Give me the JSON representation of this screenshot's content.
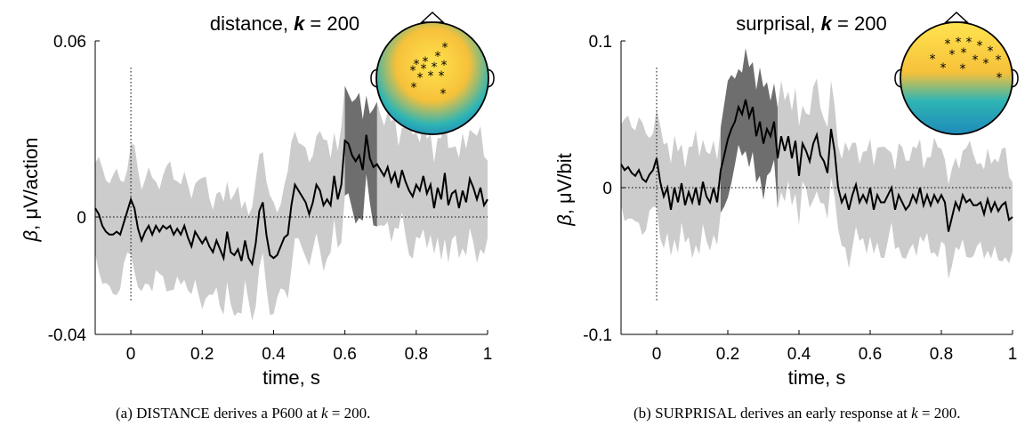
{
  "chart_data": [
    {
      "type": "line",
      "title_prefix": "distance, ",
      "title_var": "k",
      "title_eq": " = 200",
      "xlabel": "time, s",
      "ylabel_var": "β",
      "ylabel_unit": ", μV/action",
      "xlim": [
        -0.1,
        1.0
      ],
      "ylim": [
        -0.04,
        0.06
      ],
      "xticks": [
        0,
        0.2,
        0.4,
        0.6,
        0.8,
        1
      ],
      "xtick_labels": [
        "0",
        "0.2",
        "0.4",
        "0.6",
        "0.8",
        "1"
      ],
      "yticks": [
        -0.04,
        0,
        0.06
      ],
      "ytick_labels": [
        "-0.04",
        "0",
        "0.06"
      ],
      "zero_line": true,
      "onset_line_x": 0,
      "significant_window": [
        0.595,
        0.69
      ],
      "band_halfwidth": 0.018,
      "series": [
        {
          "x": [
            -0.1,
            -0.09,
            -0.08,
            -0.07,
            -0.06,
            -0.05,
            -0.04,
            -0.03,
            -0.02,
            -0.01,
            0,
            0.01,
            0.02,
            0.03,
            0.04,
            0.05,
            0.06,
            0.07,
            0.08,
            0.09,
            0.1,
            0.11,
            0.12,
            0.13,
            0.14,
            0.15,
            0.16,
            0.17,
            0.18,
            0.19,
            0.2,
            0.21,
            0.22,
            0.23,
            0.24,
            0.25,
            0.26,
            0.27,
            0.28,
            0.29,
            0.3,
            0.31,
            0.32,
            0.33,
            0.34,
            0.35,
            0.36,
            0.37,
            0.38,
            0.39,
            0.4,
            0.41,
            0.42,
            0.43,
            0.44,
            0.45,
            0.46,
            0.47,
            0.48,
            0.49,
            0.5,
            0.51,
            0.52,
            0.53,
            0.54,
            0.55,
            0.56,
            0.57,
            0.58,
            0.59,
            0.6,
            0.61,
            0.62,
            0.63,
            0.64,
            0.65,
            0.66,
            0.67,
            0.68,
            0.69,
            0.7,
            0.71,
            0.72,
            0.73,
            0.74,
            0.75,
            0.76,
            0.77,
            0.78,
            0.79,
            0.8,
            0.81,
            0.82,
            0.83,
            0.84,
            0.85,
            0.86,
            0.87,
            0.88,
            0.89,
            0.9,
            0.91,
            0.92,
            0.93,
            0.94,
            0.95,
            0.96,
            0.97,
            0.98,
            0.99,
            1.0
          ],
          "y": [
            0.003,
            0.001,
            -0.003,
            -0.005,
            -0.006,
            -0.006,
            -0.005,
            -0.006,
            -0.002,
            0.002,
            0.006,
            0.003,
            -0.004,
            -0.008,
            -0.005,
            -0.003,
            -0.006,
            -0.003,
            -0.005,
            -0.003,
            -0.004,
            -0.003,
            -0.006,
            -0.004,
            -0.006,
            -0.003,
            -0.007,
            -0.01,
            -0.005,
            -0.007,
            -0.009,
            -0.007,
            -0.01,
            -0.012,
            -0.008,
            -0.011,
            -0.014,
            -0.005,
            -0.012,
            -0.013,
            -0.011,
            -0.015,
            -0.008,
            -0.014,
            -0.016,
            -0.009,
            0.002,
            0.005,
            -0.006,
            -0.013,
            -0.014,
            -0.013,
            -0.01,
            -0.007,
            -0.006,
            0.004,
            0.011,
            0.009,
            0.007,
            0.005,
            0.001,
            0.005,
            0.011,
            0.009,
            0.004,
            0.006,
            0.004,
            0.014,
            0.006,
            0.011,
            0.026,
            0.025,
            0.021,
            0.019,
            0.021,
            0.016,
            0.028,
            0.02,
            0.017,
            0.018,
            0.016,
            0.014,
            0.017,
            0.012,
            0.015,
            0.01,
            0.016,
            0.012,
            0.009,
            0.007,
            0.011,
            0.009,
            0.014,
            0.008,
            0.011,
            0.003,
            0.01,
            0.006,
            0.015,
            0.004,
            0.008,
            0.009,
            0.003,
            0.009,
            0.005,
            0.013,
            0.01,
            0.006,
            0.01,
            0.004,
            0.006
          ]
        }
      ]
    },
    {
      "type": "line",
      "title_prefix": "surprisal, ",
      "title_var": "k",
      "title_eq": " = 200",
      "xlabel": "time, s",
      "ylabel_var": "β",
      "ylabel_unit": ", μV/bit",
      "xlim": [
        -0.1,
        1.0
      ],
      "ylim": [
        -0.1,
        0.1
      ],
      "xticks": [
        0,
        0.2,
        0.4,
        0.6,
        0.8,
        1
      ],
      "xtick_labels": [
        "0",
        "0.2",
        "0.4",
        "0.6",
        "0.8",
        "1"
      ],
      "yticks": [
        -0.1,
        0,
        0.1
      ],
      "ytick_labels": [
        "-0.1",
        "0",
        "0.1"
      ],
      "zero_line": true,
      "onset_line_x": 0,
      "significant_window": [
        0.18,
        0.34
      ],
      "band_halfwidth": 0.032,
      "series": [
        {
          "x": [
            -0.1,
            -0.09,
            -0.08,
            -0.07,
            -0.06,
            -0.05,
            -0.04,
            -0.03,
            -0.02,
            -0.01,
            0,
            0.01,
            0.02,
            0.03,
            0.04,
            0.05,
            0.06,
            0.07,
            0.08,
            0.09,
            0.1,
            0.11,
            0.12,
            0.13,
            0.14,
            0.15,
            0.16,
            0.17,
            0.18,
            0.19,
            0.2,
            0.21,
            0.22,
            0.23,
            0.24,
            0.25,
            0.26,
            0.27,
            0.28,
            0.29,
            0.3,
            0.31,
            0.32,
            0.33,
            0.34,
            0.35,
            0.36,
            0.37,
            0.38,
            0.39,
            0.4,
            0.41,
            0.42,
            0.43,
            0.44,
            0.45,
            0.46,
            0.47,
            0.48,
            0.49,
            0.5,
            0.51,
            0.52,
            0.53,
            0.54,
            0.55,
            0.56,
            0.57,
            0.58,
            0.59,
            0.6,
            0.61,
            0.62,
            0.63,
            0.64,
            0.65,
            0.66,
            0.67,
            0.68,
            0.69,
            0.7,
            0.71,
            0.72,
            0.73,
            0.74,
            0.75,
            0.76,
            0.77,
            0.78,
            0.79,
            0.8,
            0.81,
            0.82,
            0.83,
            0.84,
            0.85,
            0.86,
            0.87,
            0.88,
            0.89,
            0.9,
            0.91,
            0.92,
            0.93,
            0.94,
            0.95,
            0.96,
            0.97,
            0.98,
            0.99,
            1.0
          ],
          "y": [
            0.016,
            0.012,
            0.014,
            0.01,
            0.008,
            0.012,
            0.006,
            0.004,
            0.009,
            0.012,
            0.02,
            0.004,
            -0.006,
            0.0,
            -0.015,
            0.0,
            -0.01,
            0.003,
            -0.012,
            -0.003,
            -0.01,
            0.0,
            -0.012,
            0.004,
            -0.006,
            -0.01,
            0.0,
            -0.01,
            0.012,
            0.022,
            0.033,
            0.04,
            0.045,
            0.055,
            0.05,
            0.06,
            0.048,
            0.055,
            0.035,
            0.045,
            0.03,
            0.04,
            0.035,
            0.045,
            0.02,
            0.035,
            0.025,
            0.035,
            0.02,
            0.032,
            0.008,
            0.03,
            0.025,
            0.018,
            0.03,
            0.036,
            0.022,
            0.018,
            0.01,
            0.04,
            0.025,
            0.0,
            -0.01,
            -0.005,
            -0.015,
            -0.005,
            0.002,
            -0.01,
            -0.005,
            -0.01,
            0.0,
            -0.015,
            -0.005,
            -0.01,
            -0.01,
            -0.005,
            0.0,
            -0.015,
            -0.005,
            -0.01,
            -0.015,
            -0.012,
            -0.005,
            -0.01,
            0.0,
            -0.012,
            -0.005,
            -0.012,
            -0.005,
            -0.01,
            -0.005,
            -0.01,
            -0.03,
            -0.02,
            -0.01,
            -0.015,
            -0.005,
            -0.01,
            -0.008,
            -0.012,
            -0.012,
            -0.01,
            -0.018,
            -0.008,
            -0.016,
            -0.01,
            -0.016,
            -0.012,
            -0.01,
            -0.022,
            -0.02
          ]
        }
      ]
    }
  ],
  "topomaps": [
    {
      "colors": [
        "#ffe34f",
        "#f6c13a",
        "#1f8bbb",
        "#2fb5b3"
      ],
      "markers": 13
    },
    {
      "colors": [
        "#ffe34f",
        "#f6c13a",
        "#1f8bbb",
        "#2fb5b3"
      ],
      "markers": 14
    }
  ],
  "captions": [
    {
      "label": "(a) ",
      "term": "DISTANCE",
      "text": " derives a P600 at ",
      "var": "k",
      "eq": " = 200."
    },
    {
      "label": "(b) ",
      "term": "SURPRISAL",
      "text": " derives an early response at ",
      "var": "k",
      "eq": " = 200."
    }
  ]
}
